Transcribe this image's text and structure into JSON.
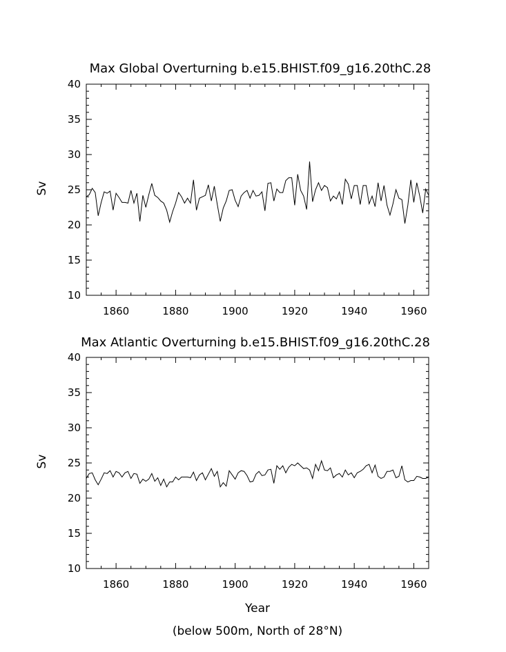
{
  "chart_data": [
    {
      "type": "line",
      "title": "Max Global Overturning b.e15.BHIST.f09_g16.20thC.28",
      "xlabel": "",
      "ylabel": "Sv",
      "xlim": [
        1850,
        1965
      ],
      "ylim": [
        10,
        40
      ],
      "xticks": [
        1860,
        1880,
        1900,
        1920,
        1940,
        1960
      ],
      "yticks": [
        10,
        15,
        20,
        25,
        30,
        35,
        40
      ],
      "x_start": 1850,
      "x_step": 1,
      "values": [
        24.0,
        24.3,
        25.2,
        24.6,
        21.3,
        23.2,
        24.7,
        24.5,
        24.8,
        22.1,
        24.5,
        23.9,
        23.2,
        23.2,
        23.1,
        24.9,
        23.1,
        24.5,
        20.5,
        24.2,
        22.5,
        24.3,
        25.9,
        24.2,
        23.9,
        23.4,
        23.1,
        22.1,
        20.4,
        21.9,
        23.1,
        24.6,
        24.0,
        23.1,
        23.8,
        23.1,
        26.4,
        22.1,
        23.8,
        24.0,
        24.2,
        25.7,
        23.4,
        25.5,
        22.9,
        20.5,
        22.4,
        23.4,
        24.9,
        25.0,
        23.5,
        22.6,
        24.1,
        24.6,
        24.9,
        23.8,
        24.9,
        24.1,
        24.2,
        24.7,
        22.0,
        25.9,
        26.0,
        23.4,
        25.1,
        24.6,
        24.6,
        26.3,
        26.7,
        26.7,
        22.8,
        27.2,
        24.9,
        24.1,
        22.2,
        29.0,
        23.3,
        25.0,
        26.0,
        24.9,
        25.6,
        25.3,
        23.4,
        24.1,
        23.7,
        24.7,
        22.9,
        26.5,
        25.8,
        23.7,
        25.6,
        25.6,
        22.9,
        25.6,
        25.6,
        23.0,
        24.1,
        22.6,
        26.0,
        23.4,
        25.6,
        22.8,
        21.4,
        23.0,
        25.0,
        23.8,
        23.6,
        20.2,
        22.8,
        26.4,
        23.2,
        26.0,
        24.1,
        21.7,
        25.1,
        24.2
      ]
    },
    {
      "type": "line",
      "title": "Max Atlantic Overturning b.e15.BHIST.f09_g16.20thC.28",
      "xlabel": "Year",
      "ylabel": "Sv",
      "note": "(below 500m, North of 28°N)",
      "xlim": [
        1850,
        1965
      ],
      "ylim": [
        10,
        40
      ],
      "xticks": [
        1860,
        1880,
        1900,
        1920,
        1940,
        1960
      ],
      "yticks": [
        10,
        15,
        20,
        25,
        30,
        35,
        40
      ],
      "x_start": 1850,
      "x_step": 1,
      "values": [
        22.8,
        23.5,
        23.6,
        22.6,
        21.9,
        22.7,
        23.6,
        23.5,
        23.9,
        23.0,
        23.8,
        23.6,
        23.0,
        23.6,
        23.8,
        22.8,
        23.5,
        23.4,
        22.1,
        22.7,
        22.4,
        22.7,
        23.5,
        22.4,
        22.9,
        21.8,
        22.7,
        21.6,
        22.3,
        22.3,
        23.0,
        22.6,
        23.0,
        23.0,
        23.0,
        22.9,
        23.7,
        22.5,
        23.3,
        23.6,
        22.6,
        23.4,
        24.2,
        23.1,
        23.8,
        21.6,
        22.2,
        21.7,
        23.9,
        23.3,
        22.7,
        23.6,
        23.9,
        23.8,
        23.2,
        22.3,
        22.4,
        23.4,
        23.8,
        23.2,
        23.3,
        24.0,
        24.1,
        22.1,
        24.6,
        24.1,
        24.6,
        23.6,
        24.4,
        24.8,
        24.6,
        25.0,
        24.6,
        24.2,
        24.3,
        24.0,
        22.8,
        24.8,
        23.9,
        25.3,
        24.0,
        23.9,
        24.3,
        22.9,
        23.3,
        23.5,
        23.0,
        24.0,
        23.3,
        23.6,
        22.9,
        23.6,
        23.8,
        24.1,
        24.6,
        24.8,
        23.6,
        24.7,
        23.1,
        22.8,
        23.0,
        23.8,
        23.8,
        24.0,
        22.9,
        23.1,
        24.6,
        22.6,
        22.3,
        22.5,
        22.5,
        23.1,
        23.0,
        22.8,
        22.8,
        23.0
      ]
    }
  ]
}
